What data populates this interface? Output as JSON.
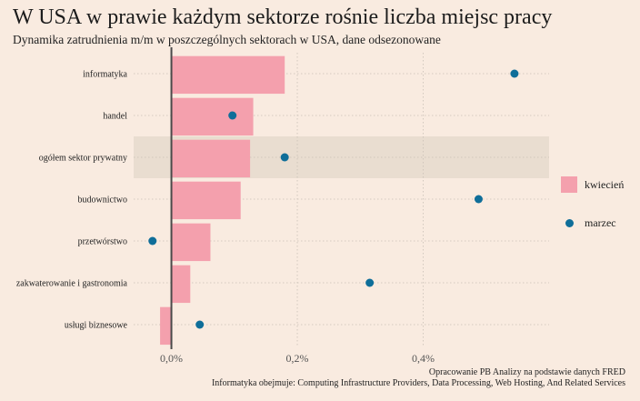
{
  "title": "W USA w prawie każdym sektorze rośnie liczba miejsc pracy",
  "subtitle": "Dynamika zatrudnienia m/m w poszczególnych sektorach w USA, dane odsezonowane",
  "source_line1": "Opracowanie PB Analizy na podstawie danych FRED",
  "source_line2": "Informatyka obejmuje: Computing Infrastructure Providers, Data Processing, Web Hosting, And Related Services",
  "colors": {
    "bar": "#f4a0ad",
    "dot": "#0f6e99",
    "highlight": "#e9ddd0",
    "grid": "#c9c0b6",
    "zero_line": "#4a4a4a"
  },
  "chart_data": {
    "type": "bar",
    "orientation": "horizontal",
    "categories": [
      "informatyka",
      "handel",
      "ogółem sektor prywatny",
      "budownictwo",
      "przetwórstwo",
      "zakwaterowanie i gastronomia",
      "usługi biznesowe"
    ],
    "highlight_category": "ogółem sektor prywatny",
    "series": [
      {
        "name": "kwiecień",
        "kind": "bar",
        "values": [
          0.18,
          0.13,
          0.125,
          0.11,
          0.062,
          0.03,
          -0.018
        ]
      },
      {
        "name": "marzec",
        "kind": "point",
        "values": [
          0.545,
          0.097,
          0.18,
          0.488,
          -0.03,
          0.315,
          0.045
        ]
      }
    ],
    "xlim": [
      -0.06,
      0.6
    ],
    "xticks": [
      0,
      0.2,
      0.4
    ],
    "xtick_labels": [
      "0,0%",
      "0,2%",
      "0,4%"
    ],
    "xlabel": "",
    "ylabel": "",
    "grid": true,
    "legend_position": "right"
  }
}
